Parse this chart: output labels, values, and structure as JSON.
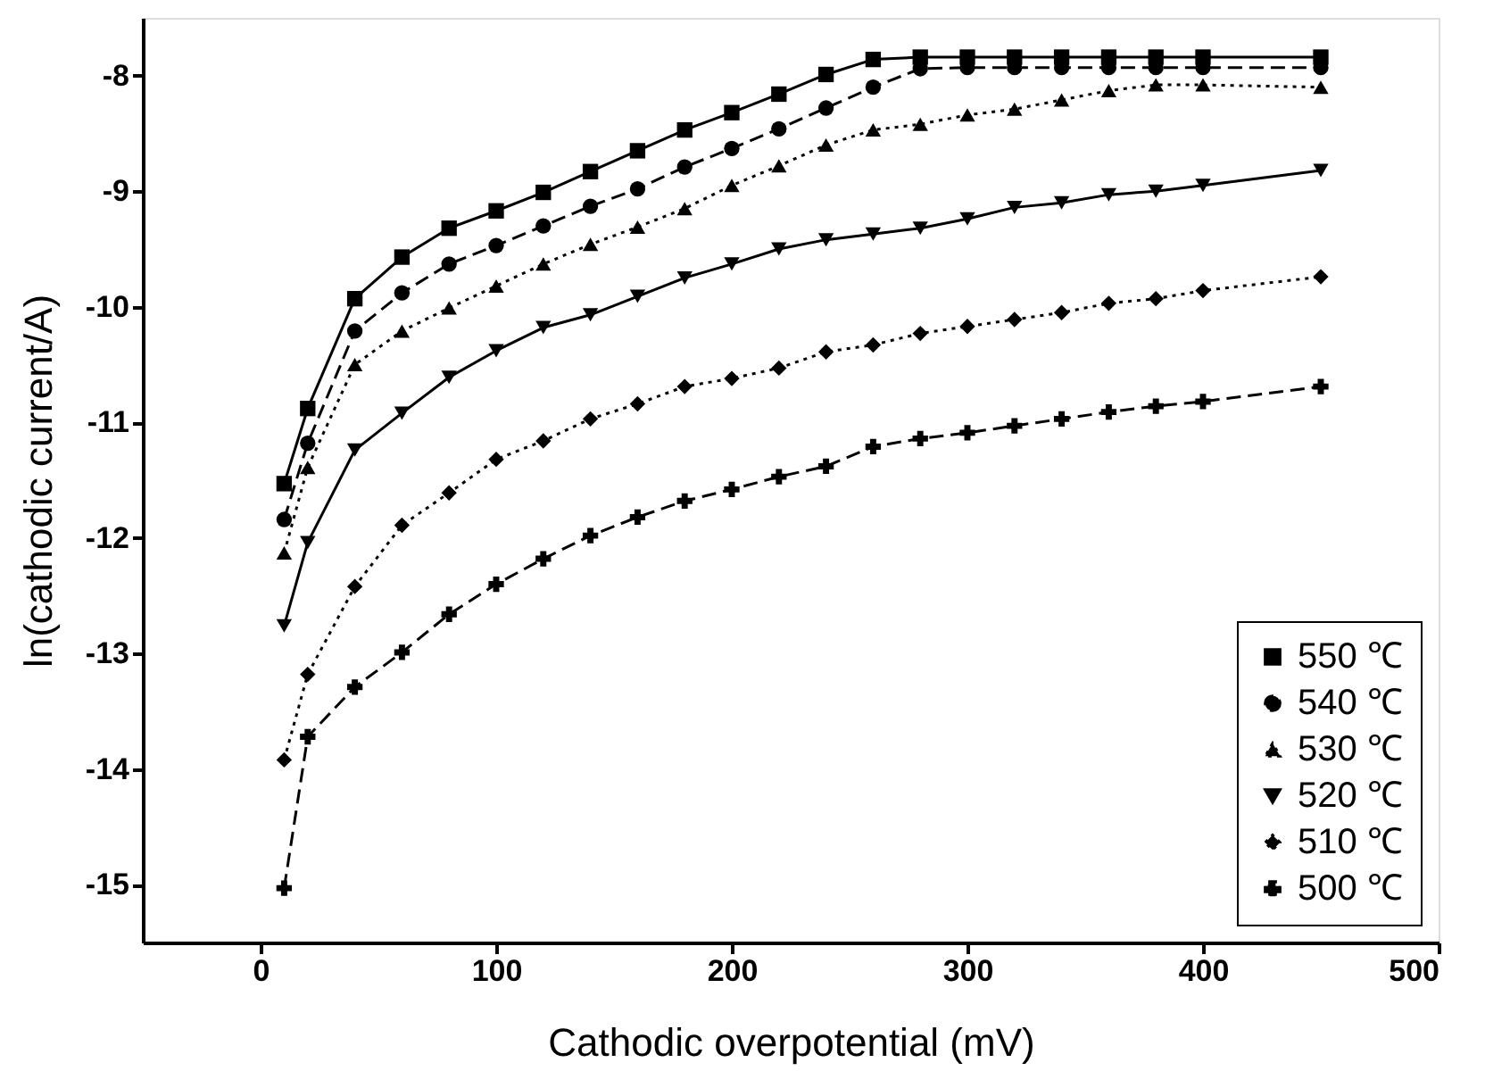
{
  "chart_data": {
    "type": "line",
    "xlabel": "Cathodic overpotential (mV)",
    "ylabel": "ln(cathodic current/A)",
    "x": [
      10,
      20,
      40,
      60,
      80,
      100,
      120,
      140,
      160,
      180,
      200,
      220,
      240,
      260,
      280,
      300,
      320,
      340,
      360,
      380,
      400,
      450
    ],
    "xlim": [
      -50,
      500
    ],
    "xticks": [
      0,
      100,
      200,
      300,
      400,
      500
    ],
    "ylim": [
      -15.5,
      -7.5
    ],
    "yticks": [
      -15,
      -14,
      -13,
      -12,
      -11,
      -10,
      -9,
      -8
    ],
    "legend": "bottom right",
    "grid": false,
    "series": [
      {
        "name": "550 ℃",
        "color": "#000000",
        "marker": "square",
        "line_style": "solid",
        "values": [
          -11.53,
          -10.88,
          -9.93,
          -9.57,
          -9.32,
          -9.17,
          -9.01,
          -8.83,
          -8.65,
          -8.47,
          -8.32,
          -8.16,
          -7.99,
          -7.86,
          -7.84,
          -7.84,
          -7.84,
          -7.84,
          -7.84,
          -7.84,
          -7.84,
          -7.84
        ]
      },
      {
        "name": "540 ℃",
        "color": "#000000",
        "marker": "circle",
        "line_style": "dashed",
        "values": [
          -11.84,
          -11.18,
          -10.21,
          -9.88,
          -9.63,
          -9.47,
          -9.3,
          -9.13,
          -8.98,
          -8.79,
          -8.63,
          -8.46,
          -8.28,
          -8.1,
          -7.94,
          -7.93,
          -7.93,
          -7.93,
          -7.93,
          -7.93,
          -7.93,
          -7.93
        ]
      },
      {
        "name": "530 ℃",
        "color": "#000000",
        "marker": "triangle",
        "line_style": "dotted",
        "values": [
          -12.13,
          -11.39,
          -10.5,
          -10.21,
          -10.01,
          -9.82,
          -9.63,
          -9.46,
          -9.31,
          -9.15,
          -8.95,
          -8.78,
          -8.6,
          -8.47,
          -8.42,
          -8.34,
          -8.29,
          -8.21,
          -8.13,
          -8.08,
          -8.08,
          -8.1
        ]
      },
      {
        "name": "520 ℃",
        "color": "#000000",
        "marker": "triangle-down",
        "line_style": "solid",
        "values": [
          -12.76,
          -12.04,
          -11.24,
          -10.92,
          -10.61,
          -10.38,
          -10.18,
          -10.07,
          -9.91,
          -9.75,
          -9.63,
          -9.5,
          -9.42,
          -9.37,
          -9.32,
          -9.24,
          -9.14,
          -9.1,
          -9.03,
          -9.0,
          -8.95,
          -8.82
        ]
      },
      {
        "name": "510 ℃",
        "color": "#000000",
        "marker": "diamond",
        "line_style": "dotted",
        "values": [
          -13.92,
          -13.18,
          -12.42,
          -11.89,
          -11.61,
          -11.32,
          -11.16,
          -10.97,
          -10.84,
          -10.69,
          -10.62,
          -10.53,
          -10.39,
          -10.33,
          -10.23,
          -10.17,
          -10.11,
          -10.05,
          -9.97,
          -9.93,
          -9.86,
          -9.74
        ]
      },
      {
        "name": "500 ℃",
        "color": "#000000",
        "marker": "cross",
        "line_style": "dashed",
        "values": [
          -15.03,
          -13.72,
          -13.29,
          -12.99,
          -12.66,
          -12.4,
          -12.18,
          -11.98,
          -11.82,
          -11.68,
          -11.58,
          -11.47,
          -11.38,
          -11.21,
          -11.14,
          -11.09,
          -11.03,
          -10.97,
          -10.91,
          -10.86,
          -10.82,
          -10.69
        ]
      }
    ]
  }
}
